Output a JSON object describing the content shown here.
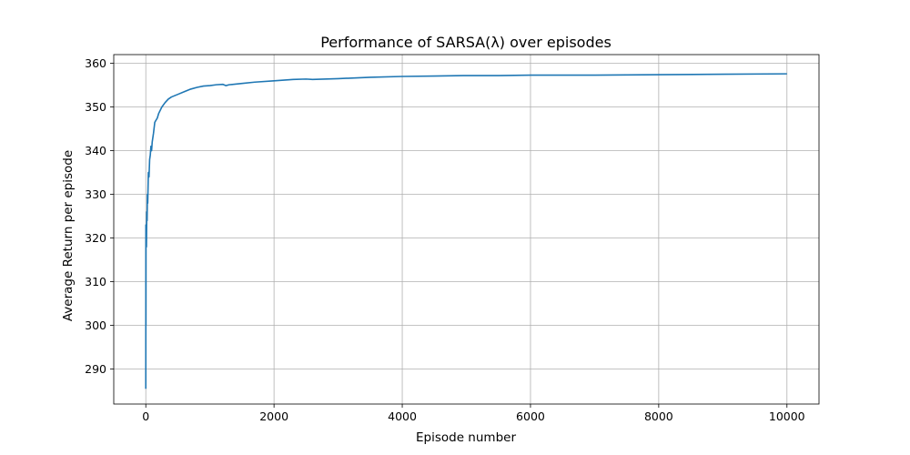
{
  "chart_data": {
    "type": "line",
    "title": "Performance of SARSA(λ) over episodes",
    "xlabel": "Episode number",
    "ylabel": "Average Return per episode",
    "xlim": [
      -500,
      10500
    ],
    "ylim": [
      282,
      362
    ],
    "xticks": [
      0,
      2000,
      4000,
      6000,
      8000,
      10000
    ],
    "xtick_labels": [
      "0",
      "2000",
      "4000",
      "6000",
      "8000",
      "10000"
    ],
    "yticks": [
      290,
      300,
      310,
      320,
      330,
      340,
      350,
      360
    ],
    "ytick_labels": [
      "290",
      "300",
      "310",
      "320",
      "330",
      "340",
      "350",
      "360"
    ],
    "grid": true,
    "legend": "none",
    "series": [
      {
        "color": "#1f77b4",
        "x": [
          0,
          1,
          2,
          3,
          5,
          7,
          10,
          15,
          20,
          25,
          30,
          40,
          50,
          60,
          70,
          80,
          90,
          100,
          120,
          140,
          160,
          180,
          200,
          250,
          300,
          350,
          400,
          500,
          600,
          700,
          800,
          900,
          1000,
          1100,
          1200,
          1250,
          1300,
          1500,
          1700,
          2000,
          2300,
          2500,
          2600,
          3000,
          3500,
          4000,
          4500,
          5000,
          5500,
          6000,
          7000,
          8000,
          9000,
          10000
        ],
        "y": [
          285.5,
          323,
          300,
          318,
          320,
          322,
          318,
          326,
          324,
          330,
          328,
          335,
          334,
          338,
          339,
          341,
          340,
          342,
          344,
          346.5,
          347,
          347.5,
          348.5,
          350,
          351,
          351.8,
          352.3,
          352.9,
          353.5,
          354.1,
          354.5,
          354.8,
          354.9,
          355.1,
          355.2,
          354.9,
          355.1,
          355.4,
          355.7,
          356.0,
          356.3,
          356.4,
          356.3,
          356.5,
          356.8,
          357.0,
          357.1,
          357.2,
          357.2,
          357.3,
          357.3,
          357.4,
          357.5,
          357.6
        ]
      }
    ]
  }
}
